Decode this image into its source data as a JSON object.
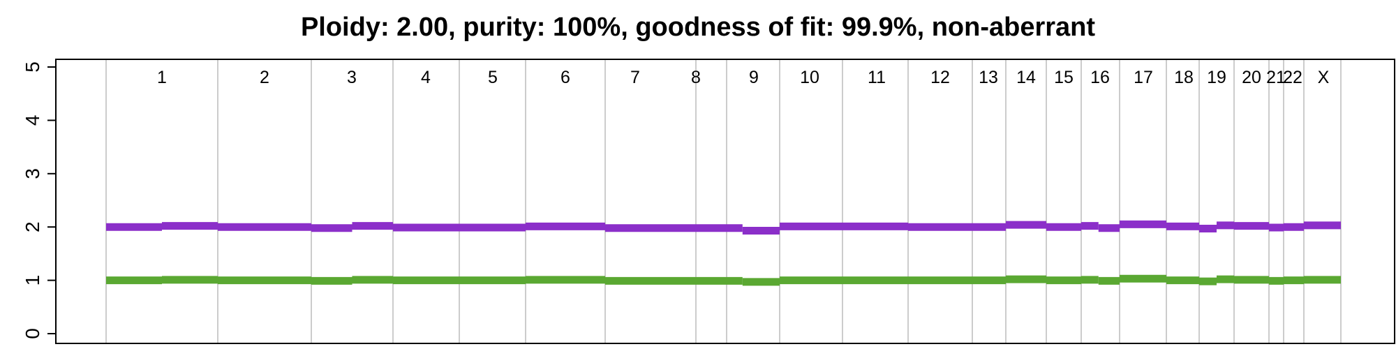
{
  "chart_data": {
    "type": "line",
    "title": "Ploidy: 2.00, purity: 100%, goodness of fit: 99.9%, non-aberrant",
    "xlabel": "",
    "ylabel": "",
    "ylim": [
      0,
      5
    ],
    "yticks": [
      "0",
      "1",
      "2",
      "3",
      "4",
      "5"
    ],
    "grid": true,
    "chromosome_labels": [
      "1",
      "2",
      "3",
      "4",
      "5",
      "6",
      "7",
      "8",
      "9",
      "10",
      "11",
      "12",
      "13",
      "14",
      "15",
      "16",
      "17",
      "18",
      "19",
      "20",
      "21",
      "22",
      "X"
    ],
    "colors": {
      "total": "#8b2fc9",
      "minor": "#5aa832",
      "grid": "#cccccc",
      "frame": "#000000"
    },
    "series": [
      {
        "color": "#8b2fc9",
        "segments": [
          {
            "chrom": "1",
            "from": 0,
            "to": 0.5,
            "value": 2.0
          },
          {
            "chrom": "1",
            "from": 0.5,
            "to": 1,
            "value": 2.02
          },
          {
            "chrom": "2",
            "from": 0,
            "to": 1,
            "value": 2.0
          },
          {
            "chrom": "3",
            "from": 0,
            "to": 0.5,
            "value": 1.98
          },
          {
            "chrom": "3",
            "from": 0.5,
            "to": 1,
            "value": 2.02
          },
          {
            "chrom": "4",
            "from": 0,
            "to": 1,
            "value": 1.99
          },
          {
            "chrom": "5",
            "from": 0,
            "to": 1,
            "value": 1.99
          },
          {
            "chrom": "6",
            "from": 0,
            "to": 1,
            "value": 2.01
          },
          {
            "chrom": "7",
            "from": 0,
            "to": 1,
            "value": 1.98
          },
          {
            "chrom": "8",
            "from": 0,
            "to": 1,
            "value": 1.98
          },
          {
            "chrom": "9",
            "from": 0,
            "to": 0.3,
            "value": 1.98
          },
          {
            "chrom": "9",
            "from": 0.3,
            "to": 1,
            "value": 1.93
          },
          {
            "chrom": "10",
            "from": 0,
            "to": 1,
            "value": 2.01
          },
          {
            "chrom": "11",
            "from": 0,
            "to": 1,
            "value": 2.01
          },
          {
            "chrom": "12",
            "from": 0,
            "to": 1,
            "value": 2.0
          },
          {
            "chrom": "13",
            "from": 0,
            "to": 1,
            "value": 2.0
          },
          {
            "chrom": "14",
            "from": 0,
            "to": 1,
            "value": 2.04
          },
          {
            "chrom": "15",
            "from": 0,
            "to": 1,
            "value": 2.0
          },
          {
            "chrom": "16",
            "from": 0,
            "to": 0.45,
            "value": 2.02
          },
          {
            "chrom": "16",
            "from": 0.45,
            "to": 1,
            "value": 1.98
          },
          {
            "chrom": "17",
            "from": 0,
            "to": 1,
            "value": 2.05
          },
          {
            "chrom": "18",
            "from": 0,
            "to": 1,
            "value": 2.01
          },
          {
            "chrom": "19",
            "from": 0,
            "to": 0.5,
            "value": 1.97
          },
          {
            "chrom": "19",
            "from": 0.5,
            "to": 1,
            "value": 2.03
          },
          {
            "chrom": "20",
            "from": 0,
            "to": 1,
            "value": 2.02
          },
          {
            "chrom": "21",
            "from": 0,
            "to": 1,
            "value": 1.99
          },
          {
            "chrom": "22",
            "from": 0,
            "to": 1,
            "value": 2.0
          },
          {
            "chrom": "X",
            "from": 0,
            "to": 1,
            "value": 2.03
          }
        ]
      },
      {
        "color": "#5aa832",
        "segments": [
          {
            "chrom": "1",
            "from": 0,
            "to": 0.5,
            "value": 1.0
          },
          {
            "chrom": "1",
            "from": 0.5,
            "to": 1,
            "value": 1.01
          },
          {
            "chrom": "2",
            "from": 0,
            "to": 1,
            "value": 1.0
          },
          {
            "chrom": "3",
            "from": 0,
            "to": 0.5,
            "value": 0.99
          },
          {
            "chrom": "3",
            "from": 0.5,
            "to": 1,
            "value": 1.01
          },
          {
            "chrom": "4",
            "from": 0,
            "to": 1,
            "value": 1.0
          },
          {
            "chrom": "5",
            "from": 0,
            "to": 1,
            "value": 1.0
          },
          {
            "chrom": "6",
            "from": 0,
            "to": 1,
            "value": 1.01
          },
          {
            "chrom": "7",
            "from": 0,
            "to": 1,
            "value": 0.99
          },
          {
            "chrom": "8",
            "from": 0,
            "to": 1,
            "value": 0.99
          },
          {
            "chrom": "9",
            "from": 0,
            "to": 0.3,
            "value": 0.99
          },
          {
            "chrom": "9",
            "from": 0.3,
            "to": 1,
            "value": 0.97
          },
          {
            "chrom": "10",
            "from": 0,
            "to": 1,
            "value": 1.0
          },
          {
            "chrom": "11",
            "from": 0,
            "to": 1,
            "value": 1.0
          },
          {
            "chrom": "12",
            "from": 0,
            "to": 1,
            "value": 1.0
          },
          {
            "chrom": "13",
            "from": 0,
            "to": 1,
            "value": 1.0
          },
          {
            "chrom": "14",
            "from": 0,
            "to": 1,
            "value": 1.02
          },
          {
            "chrom": "15",
            "from": 0,
            "to": 1,
            "value": 1.0
          },
          {
            "chrom": "16",
            "from": 0,
            "to": 0.45,
            "value": 1.01
          },
          {
            "chrom": "16",
            "from": 0.45,
            "to": 1,
            "value": 0.99
          },
          {
            "chrom": "17",
            "from": 0,
            "to": 1,
            "value": 1.03
          },
          {
            "chrom": "18",
            "from": 0,
            "to": 1,
            "value": 1.0
          },
          {
            "chrom": "19",
            "from": 0,
            "to": 0.5,
            "value": 0.98
          },
          {
            "chrom": "19",
            "from": 0.5,
            "to": 1,
            "value": 1.02
          },
          {
            "chrom": "20",
            "from": 0,
            "to": 1,
            "value": 1.01
          },
          {
            "chrom": "21",
            "from": 0,
            "to": 1,
            "value": 0.99
          },
          {
            "chrom": "22",
            "from": 0,
            "to": 1,
            "value": 1.0
          },
          {
            "chrom": "X",
            "from": 0,
            "to": 1,
            "value": 1.01
          }
        ]
      }
    ]
  }
}
